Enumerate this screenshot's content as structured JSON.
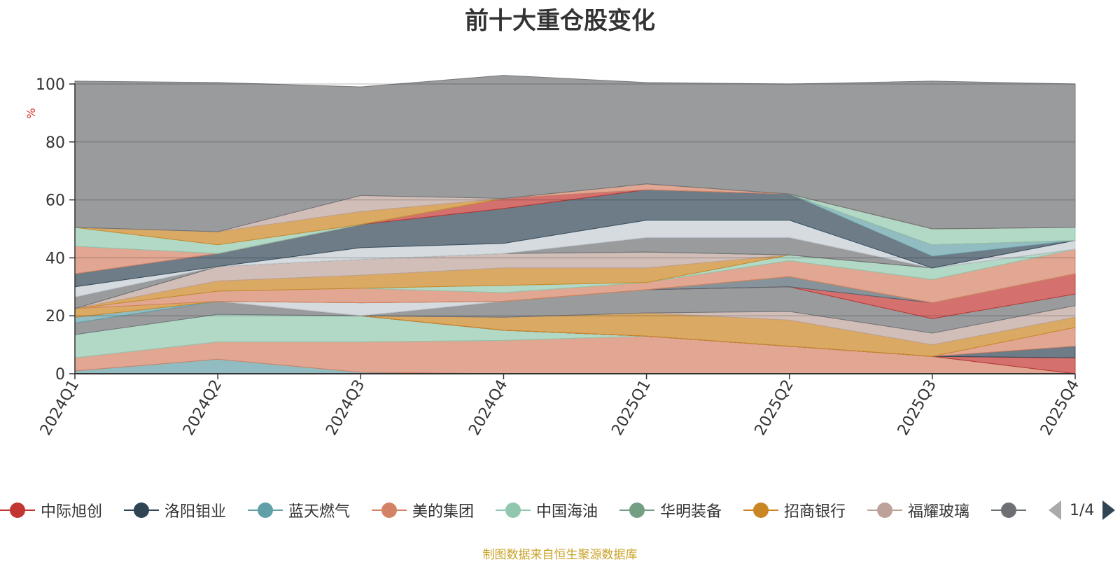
{
  "chart_data": {
    "type": "area",
    "title": "前十大重仓股变化",
    "ylabel": "%",
    "ylim": [
      0,
      100
    ],
    "yticks": [
      0,
      20,
      40,
      60,
      80,
      100
    ],
    "categories": [
      "2024Q1",
      "2024Q2",
      "2024Q3",
      "2024Q4",
      "2025Q1",
      "2025Q2",
      "2025Q3",
      "2025Q4"
    ],
    "stacked": true,
    "grid": true,
    "legend_position": "bottom",
    "series": [
      {
        "color": "#61a0a8",
        "values": [
          1.0,
          5.0,
          0.5,
          0,
          0,
          0,
          0,
          0
        ]
      },
      {
        "color": "#d48265",
        "values": [
          4.5,
          6.0,
          10.5,
          11.5,
          13.0,
          9.5,
          6.0,
          0
        ]
      },
      {
        "color": "#91c7ae",
        "values": [
          8.0,
          9.5,
          9.0,
          3.5,
          0,
          0,
          0,
          0
        ]
      },
      {
        "color": "#6e7074",
        "values": [
          4.0,
          4.5,
          0,
          0,
          0,
          0,
          0,
          0
        ]
      },
      {
        "color": "#c23531",
        "values": [
          0,
          0,
          0,
          0,
          0,
          0,
          0,
          5.5
        ]
      },
      {
        "color": "#2f4554",
        "values": [
          0,
          0,
          0,
          0,
          0,
          0,
          0,
          4.0
        ]
      },
      {
        "color": "#d48265",
        "values": [
          0,
          0,
          0,
          0,
          0,
          0,
          0,
          6.5
        ]
      },
      {
        "color": "#ca8622",
        "values": [
          0,
          0,
          0,
          4.5,
          8.0,
          9.0,
          4.0,
          3.5
        ]
      },
      {
        "color": "#bda29a",
        "values": [
          0,
          0,
          0,
          0,
          0,
          3.0,
          4.0,
          4.0
        ]
      },
      {
        "color": "#6e7074",
        "values": [
          0,
          0,
          0,
          5.5,
          8.0,
          8.5,
          5.0,
          4.0
        ]
      },
      {
        "color": "#c23531",
        "values": [
          0,
          0,
          0,
          0,
          0,
          0,
          5.5,
          7.0
        ]
      },
      {
        "color": "#546570",
        "values": [
          0,
          0,
          0,
          0,
          0,
          3.5,
          0,
          0
        ]
      },
      {
        "color": "#c4ccd3",
        "values": [
          0,
          0,
          4.5,
          0,
          0,
          0,
          0,
          0
        ]
      },
      {
        "color": "#61a0a8",
        "values": [
          2.0,
          0,
          0,
          0,
          0,
          0,
          0,
          0
        ]
      },
      {
        "color": "#ca8622",
        "values": [
          3.0,
          0,
          0,
          0,
          0,
          0,
          0,
          0
        ]
      },
      {
        "color": "#d48265",
        "values": [
          0,
          3.5,
          5.0,
          3.0,
          2.5,
          5.5,
          8.0,
          8.5
        ]
      },
      {
        "color": "#91c7ae",
        "values": [
          0,
          0,
          0,
          2.5,
          0,
          2.0,
          4.0,
          0
        ]
      },
      {
        "color": "#ca8622",
        "values": [
          0,
          3.5,
          4.5,
          6.0,
          5.0,
          0,
          0,
          0
        ]
      },
      {
        "color": "#bda29a",
        "values": [
          0,
          5.0,
          5.5,
          5.0,
          5.5,
          0,
          0,
          0
        ]
      },
      {
        "color": "#749f83",
        "values": [
          0,
          0,
          0,
          0,
          0,
          0,
          0,
          0
        ]
      },
      {
        "color": "#6e7074",
        "values": [
          4.0,
          0,
          0,
          0,
          5.0,
          6.0,
          0,
          0
        ]
      },
      {
        "color": "#c4ccd3",
        "values": [
          3.5,
          0,
          4.0,
          3.5,
          6.0,
          6.0,
          0,
          3.0
        ]
      },
      {
        "color": "#2f4554",
        "values": [
          4.5,
          4.5,
          8.0,
          12.0,
          10.5,
          9.0,
          4.0,
          0
        ]
      },
      {
        "color": "#c23531",
        "values": [
          0,
          0,
          0,
          3.5,
          0,
          0,
          0,
          0
        ]
      },
      {
        "color": "#61a0a8",
        "values": [
          0,
          0,
          0,
          0,
          0,
          0,
          4.0,
          0
        ]
      },
      {
        "color": "#d48265",
        "values": [
          9.5,
          0,
          0,
          0,
          2.0,
          0,
          0,
          0
        ]
      },
      {
        "color": "#91c7ae",
        "values": [
          6.5,
          3.0,
          0,
          0,
          0,
          0,
          5.5,
          4.5
        ]
      },
      {
        "color": "#ca8622",
        "values": [
          0,
          4.5,
          4.5,
          0,
          0,
          0,
          0,
          0
        ]
      },
      {
        "color": "#bda29a",
        "values": [
          0,
          0,
          5.5,
          0,
          0,
          0,
          0,
          0
        ]
      },
      {
        "color": "#6e7074",
        "values": [
          50.5,
          51.5,
          37.5,
          42.5,
          35.0,
          38.0,
          51.0,
          49.5
        ]
      }
    ]
  },
  "legend": {
    "items": [
      {
        "label": "中际旭创",
        "color": "#c23531"
      },
      {
        "label": "洛阳钼业",
        "color": "#2f4554"
      },
      {
        "label": "蓝天燃气",
        "color": "#61a0a8"
      },
      {
        "label": "美的集团",
        "color": "#d48265"
      },
      {
        "label": "中国海油",
        "color": "#91c7ae"
      },
      {
        "label": "华明装备",
        "color": "#749f83"
      },
      {
        "label": "招商银行",
        "color": "#ca8622"
      },
      {
        "label": "福耀玻璃",
        "color": "#bda29a"
      },
      {
        "label": "",
        "color": "#6e7074"
      }
    ],
    "pager": "1/4"
  },
  "footer": {
    "source_note": "制图数据来自恒生聚源数据库"
  }
}
